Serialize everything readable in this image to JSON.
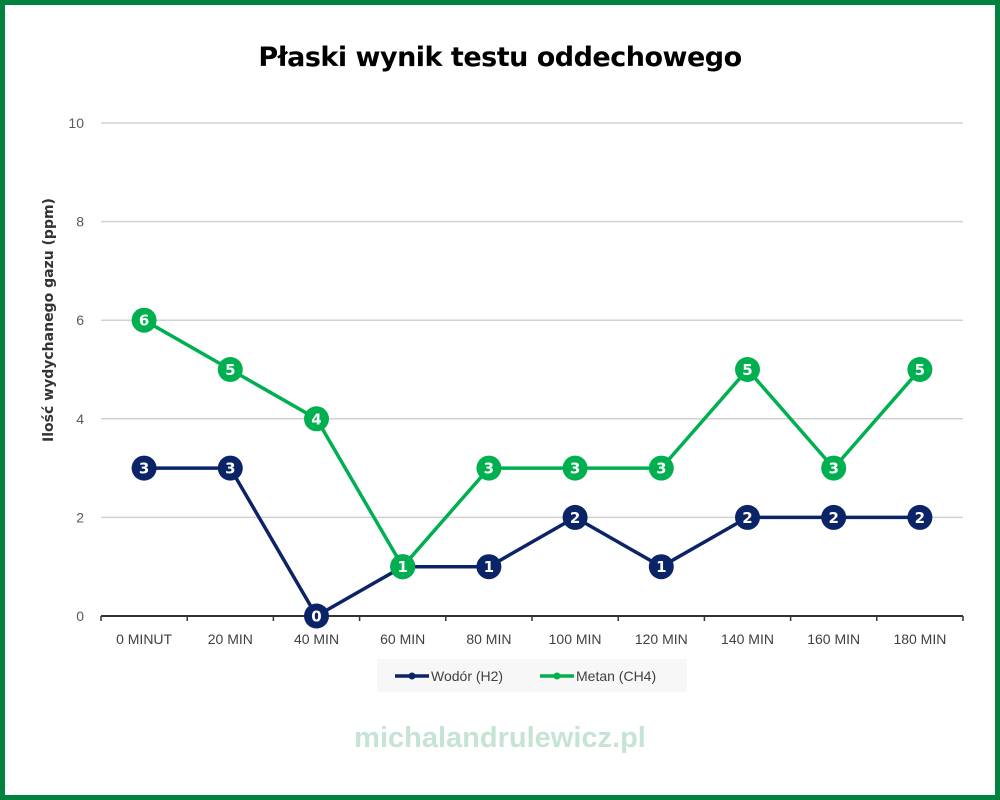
{
  "title": "Płaski wynik testu oddechowego",
  "watermark": "michalandrulewicz.pl",
  "colors": {
    "frame": "#00843d",
    "h2": "#0b2467",
    "ch4": "#00b050",
    "grid": "#d0d0d0",
    "axis": "#333333"
  },
  "chart_data": {
    "type": "line",
    "title": "Płaski wynik testu oddechowego",
    "xlabel": "",
    "ylabel": "Ilość wydychanego gazu (ppm)",
    "ylim": [
      0,
      10
    ],
    "yticks": [
      0,
      2,
      4,
      6,
      8,
      10
    ],
    "grid": true,
    "legend_position": "bottom",
    "categories": [
      "0 MINUT",
      "20 MIN",
      "40 MIN",
      "60 MIN",
      "80 MIN",
      "100 MIN",
      "120 MIN",
      "140 MIN",
      "160 MIN",
      "180 MIN"
    ],
    "series": [
      {
        "name": "Wodór (H2)",
        "color": "#0b2467",
        "values": [
          3,
          3,
          0,
          1,
          1,
          2,
          1,
          2,
          2,
          2
        ]
      },
      {
        "name": "Metan (CH4)",
        "color": "#00b050",
        "values": [
          6,
          5,
          4,
          1,
          3,
          3,
          3,
          5,
          3,
          5
        ]
      }
    ]
  }
}
